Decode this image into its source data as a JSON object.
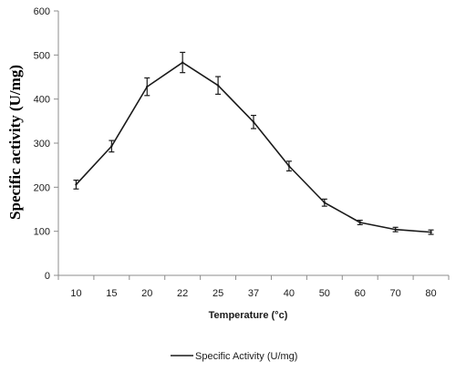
{
  "chart_data": {
    "type": "line",
    "title": "",
    "xlabel": "Temperature (°c)",
    "ylabel": "Specific activity (U/mg)",
    "categories": [
      "10",
      "15",
      "20",
      "22",
      "25",
      "37",
      "40",
      "50",
      "60",
      "70",
      "80"
    ],
    "series": [
      {
        "name": "Specific Activity (U/mg)",
        "values": [
          206,
          293,
          428,
          483,
          431,
          348,
          248,
          165,
          120,
          104,
          98
        ],
        "error": [
          10,
          13,
          20,
          23,
          20,
          15,
          11,
          8,
          5,
          5,
          5
        ],
        "color": "#1a1a1a"
      }
    ],
    "ylim": [
      0,
      600
    ],
    "yticks": [
      "0",
      "100",
      "200",
      "300",
      "400",
      "500",
      "600"
    ],
    "grid": false,
    "legend_position": "bottom"
  }
}
